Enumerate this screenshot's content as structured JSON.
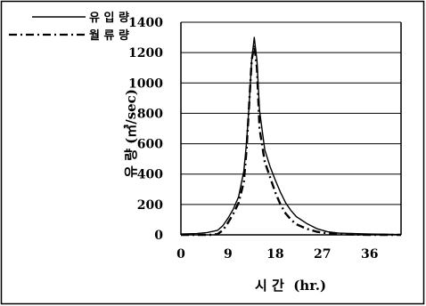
{
  "chart_data": {
    "type": "line",
    "title": "",
    "xlabel": "시 간  (hr.)",
    "ylabel": "유 량 (㎥/sec)",
    "xlim": [
      0,
      42
    ],
    "ylim": [
      0,
      1400
    ],
    "x_ticks": [
      "0",
      "9",
      "18",
      "27",
      "36"
    ],
    "y_ticks": [
      "0",
      "200",
      "400",
      "600",
      "800",
      "1000",
      "1200",
      "1400"
    ],
    "grid": {
      "horizontal": true,
      "vertical": false
    },
    "legend_position": "top-left",
    "series": [
      {
        "name": "유 입 량",
        "line_style": "solid",
        "color": "#000000",
        "x": [
          0,
          3,
          5,
          7,
          8,
          9,
          10,
          11,
          12,
          12.5,
          13,
          13.5,
          14,
          14.5,
          15,
          16,
          17,
          18,
          19,
          20,
          21,
          22,
          24,
          26,
          28,
          30,
          33,
          36,
          40,
          42
        ],
        "y": [
          5,
          8,
          15,
          30,
          60,
          110,
          170,
          250,
          420,
          600,
          850,
          1150,
          1300,
          1150,
          820,
          560,
          450,
          360,
          280,
          210,
          160,
          120,
          75,
          40,
          20,
          12,
          8,
          5,
          3,
          2
        ]
      },
      {
        "name": "월 류 량",
        "line_style": "dash-dot",
        "color": "#000000",
        "x": [
          0,
          4,
          6,
          7,
          8,
          9,
          10,
          11,
          12,
          12.5,
          13,
          13.5,
          14,
          14.5,
          15,
          16,
          17,
          18,
          19,
          20,
          21,
          22,
          24,
          26,
          28,
          30,
          33,
          36,
          40,
          42
        ],
        "y": [
          0,
          0,
          0,
          5,
          30,
          80,
          140,
          210,
          350,
          550,
          850,
          1150,
          1250,
          1100,
          700,
          480,
          380,
          280,
          200,
          140,
          100,
          70,
          40,
          20,
          10,
          5,
          2,
          0,
          0,
          0
        ]
      }
    ]
  }
}
